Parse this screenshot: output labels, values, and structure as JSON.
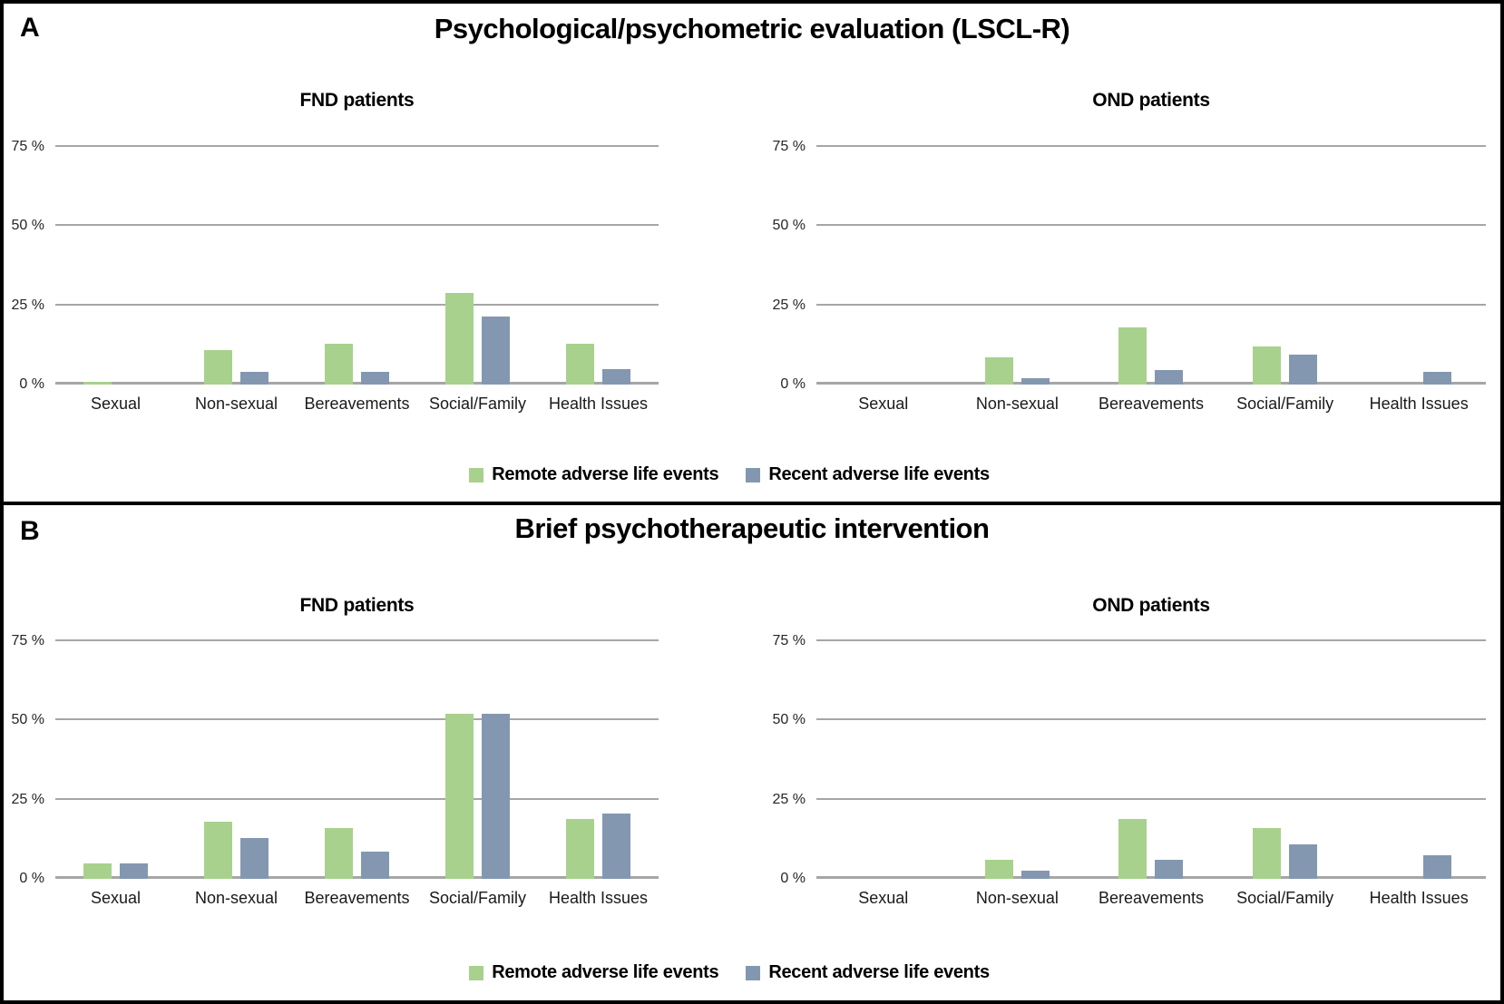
{
  "figure": {
    "panels": [
      {
        "letter": "A",
        "title": "Psychological/psychometric evaluation (LSCL-R)"
      },
      {
        "letter": "B",
        "title": "Brief psychotherapeutic intervention"
      }
    ],
    "legend": {
      "remote_label": "Remote adverse life events",
      "recent_label": "Recent adverse life events"
    },
    "colors": {
      "remote": "#a9d18e",
      "recent": "#8497b0",
      "gridline": "#a6a6a6",
      "axis": "#a6a6a6",
      "border": "#000000"
    }
  },
  "chart_data": [
    {
      "panel": "A",
      "type": "bar",
      "title": "FND patients",
      "categories": [
        "Sexual",
        "Non-sexual",
        "Bereavements",
        "Social/Family",
        "Health Issues"
      ],
      "series": [
        {
          "name": "Remote adverse life events",
          "color": "#a9d18e",
          "values": [
            1,
            11,
            13,
            29,
            13
          ]
        },
        {
          "name": "Recent adverse life events",
          "color": "#8497b0",
          "values": [
            0,
            4,
            4,
            21.5,
            5
          ]
        }
      ],
      "ylabel": "%",
      "ylim": [
        0,
        80
      ],
      "yticks": [
        0,
        25,
        50,
        75
      ],
      "ytick_labels": [
        "0 %",
        "25 %",
        "50 %",
        "75 %"
      ],
      "grid": true,
      "legend_position": "bottom"
    },
    {
      "panel": "A",
      "type": "bar",
      "title": "OND patients",
      "categories": [
        "Sexual",
        "Non-sexual",
        "Bereavements",
        "Social/Family",
        "Health Issues"
      ],
      "series": [
        {
          "name": "Remote adverse life events",
          "color": "#a9d18e",
          "values": [
            0,
            8.5,
            18,
            12,
            0
          ]
        },
        {
          "name": "Recent adverse life events",
          "color": "#8497b0",
          "values": [
            0,
            2,
            4.5,
            9.5,
            4
          ]
        }
      ],
      "ylabel": "%",
      "ylim": [
        0,
        80
      ],
      "yticks": [
        0,
        25,
        50,
        75
      ],
      "ytick_labels": [
        "0 %",
        "25 %",
        "50 %",
        "75 %"
      ],
      "grid": true,
      "legend_position": "bottom"
    },
    {
      "panel": "B",
      "type": "bar",
      "title": "FND patients",
      "categories": [
        "Sexual",
        "Non-sexual",
        "Bereavements",
        "Social/Family",
        "Health Issues"
      ],
      "series": [
        {
          "name": "Remote adverse life events",
          "color": "#a9d18e",
          "values": [
            5,
            18,
            16,
            52,
            19
          ]
        },
        {
          "name": "Recent adverse life events",
          "color": "#8497b0",
          "values": [
            5,
            13,
            8.5,
            52,
            20.5
          ]
        }
      ],
      "ylabel": "%",
      "ylim": [
        0,
        80
      ],
      "yticks": [
        0,
        25,
        50,
        75
      ],
      "ytick_labels": [
        "0 %",
        "25 %",
        "50 %",
        "75 %"
      ],
      "grid": true,
      "legend_position": "bottom"
    },
    {
      "panel": "B",
      "type": "bar",
      "title": "OND patients",
      "categories": [
        "Sexual",
        "Non-sexual",
        "Bereavements",
        "Social/Family",
        "Health Issues"
      ],
      "series": [
        {
          "name": "Remote adverse life events",
          "color": "#a9d18e",
          "values": [
            0,
            6,
            19,
            16,
            0
          ]
        },
        {
          "name": "Recent adverse life events",
          "color": "#8497b0",
          "values": [
            0,
            2.5,
            6,
            11,
            7.5
          ]
        }
      ],
      "ylabel": "%",
      "ylim": [
        0,
        80
      ],
      "yticks": [
        0,
        25,
        50,
        75
      ],
      "ytick_labels": [
        "0 %",
        "25 %",
        "50 %",
        "75 %"
      ],
      "grid": true,
      "legend_position": "bottom"
    }
  ]
}
